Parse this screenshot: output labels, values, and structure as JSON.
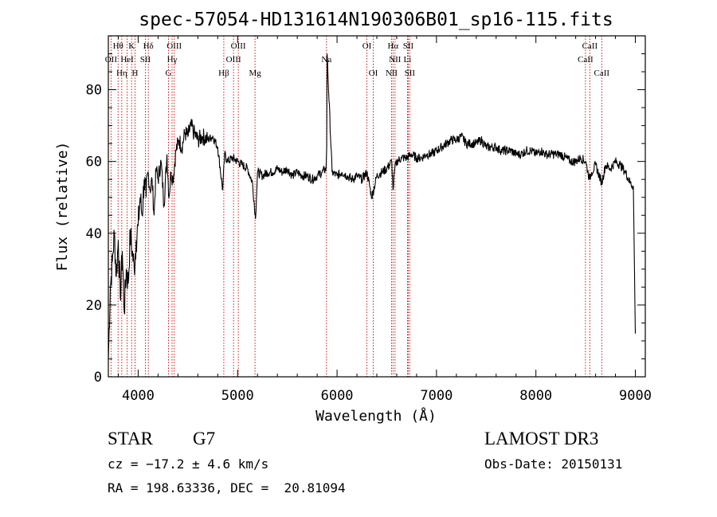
{
  "chart_data": {
    "type": "line",
    "title": "spec-57054-HD131614N190306B01_sp16-115.fits",
    "xlabel": "Wavelength (Å)",
    "ylabel": "Flux (relative)",
    "xlim": [
      3700,
      9100
    ],
    "ylim": [
      0,
      95
    ],
    "x_ticks": [
      4000,
      5000,
      6000,
      7000,
      8000,
      9000
    ],
    "y_ticks": [
      0,
      20,
      40,
      60,
      80
    ],
    "series": [
      {
        "x": [
          3700,
          3720,
          3740,
          3760,
          3780,
          3800,
          3820,
          3840,
          3860,
          3880,
          3900,
          3920,
          3940,
          3960,
          3980,
          4000,
          4020,
          4040,
          4060,
          4080,
          4100,
          4120,
          4140,
          4160,
          4180,
          4200,
          4230,
          4260,
          4290,
          4310,
          4330,
          4350,
          4380,
          4410,
          4440,
          4470,
          4500,
          4530,
          4560,
          4600,
          4650,
          4700,
          4750,
          4800,
          4850,
          4870,
          4900,
          4950,
          5000,
          5050,
          5100,
          5150,
          5180,
          5200,
          5250,
          5300,
          5350,
          5400,
          5450,
          5500,
          5550,
          5600,
          5650,
          5700,
          5750,
          5800,
          5850,
          5890,
          5896,
          5900,
          5950,
          6000,
          6050,
          6100,
          6150,
          6200,
          6250,
          6300,
          6350,
          6400,
          6450,
          6500,
          6550,
          6563,
          6580,
          6600,
          6650,
          6700,
          6750,
          6800,
          6850,
          6900,
          6950,
          7000,
          7050,
          7100,
          7150,
          7200,
          7250,
          7300,
          7350,
          7400,
          7450,
          7500,
          7550,
          7600,
          7650,
          7700,
          7750,
          7800,
          7850,
          7900,
          7950,
          8000,
          8050,
          8100,
          8150,
          8200,
          8250,
          8300,
          8350,
          8400,
          8450,
          8500,
          8540,
          8560,
          8600,
          8662,
          8700,
          8750,
          8800,
          8850,
          8900,
          8950,
          8980,
          9000
        ],
        "y": [
          5,
          25,
          32,
          40,
          28,
          38,
          22,
          35,
          18,
          30,
          26,
          40,
          35,
          30,
          38,
          42,
          50,
          45,
          55,
          50,
          57,
          52,
          55,
          45,
          58,
          55,
          60,
          48,
          62,
          50,
          57,
          55,
          63,
          66,
          64,
          68,
          67,
          70,
          68,
          66,
          67,
          66,
          67,
          64,
          52,
          62,
          60,
          61,
          60,
          59,
          58,
          54,
          44,
          57,
          56,
          57,
          57,
          58,
          57,
          58,
          56,
          57,
          56,
          56,
          55,
          56,
          57,
          58,
          64,
          90,
          57,
          56,
          57,
          56,
          55,
          56,
          55,
          57,
          50,
          56,
          57,
          58,
          60,
          52,
          58,
          60,
          61,
          61,
          62,
          61,
          61,
          62,
          62,
          63,
          64,
          65,
          66,
          66,
          67,
          65,
          65,
          65,
          66,
          64,
          64,
          64,
          63,
          63,
          63,
          62,
          62,
          63,
          63,
          62,
          63,
          62,
          62,
          62,
          62,
          61,
          60,
          60,
          61,
          60,
          55,
          57,
          59,
          54,
          59,
          58,
          60,
          59,
          57,
          54,
          53,
          12
        ]
      }
    ],
    "lines": [
      {
        "name": "OII",
        "wavelength": 3727,
        "row": 2
      },
      {
        "name": "Hθ",
        "wavelength": 3798,
        "row": 1
      },
      {
        "name": "Hη",
        "wavelength": 3835,
        "row": 3
      },
      {
        "name": "HeI",
        "wavelength": 3889,
        "row": 2
      },
      {
        "name": "K",
        "wavelength": 3934,
        "row": 1
      },
      {
        "name": "H",
        "wavelength": 3968,
        "row": 3
      },
      {
        "name": "SII",
        "wavelength": 4072,
        "row": 2
      },
      {
        "name": "Hδ",
        "wavelength": 4102,
        "row": 1
      },
      {
        "name": "G",
        "wavelength": 4305,
        "row": 3
      },
      {
        "name": "Hγ",
        "wavelength": 4341,
        "row": 2
      },
      {
        "name": "OIII",
        "wavelength": 4363,
        "row": 1
      },
      {
        "name": "Hβ",
        "wavelength": 4861,
        "row": 3
      },
      {
        "name": "OIII",
        "wavelength": 4959,
        "row": 2
      },
      {
        "name": "OIII",
        "wavelength": 5007,
        "row": 1
      },
      {
        "name": "Mg",
        "wavelength": 5175,
        "row": 3
      },
      {
        "name": "Na",
        "wavelength": 5894,
        "row": 2
      },
      {
        "name": "OI",
        "wavelength": 6300,
        "row": 1
      },
      {
        "name": "OI",
        "wavelength": 6364,
        "row": 3
      },
      {
        "name": "NII",
        "wavelength": 6548,
        "row": 3
      },
      {
        "name": "Hα",
        "wavelength": 6563,
        "row": 1
      },
      {
        "name": "NII",
        "wavelength": 6583,
        "row": 2
      },
      {
        "name": "Li",
        "wavelength": 6708,
        "row": 2
      },
      {
        "name": "SII",
        "wavelength": 6716,
        "row": 1
      },
      {
        "name": "SII",
        "wavelength": 6731,
        "row": 3
      },
      {
        "name": "CaII",
        "wavelength": 8498,
        "row": 2
      },
      {
        "name": "CaII",
        "wavelength": 8542,
        "row": 1
      },
      {
        "name": "CaII",
        "wavelength": 8662,
        "row": 3
      }
    ],
    "grid": false,
    "line_marker_color": "#c00000"
  },
  "info": {
    "object_type": "STAR",
    "subclass": "G7",
    "survey": "LAMOST DR3",
    "velocity": "cz = −17.2 ± 4.6 km/s",
    "obs_date": "Obs-Date: 20150131",
    "coords": "RA = 198.63336, DEC =  20.81094"
  }
}
